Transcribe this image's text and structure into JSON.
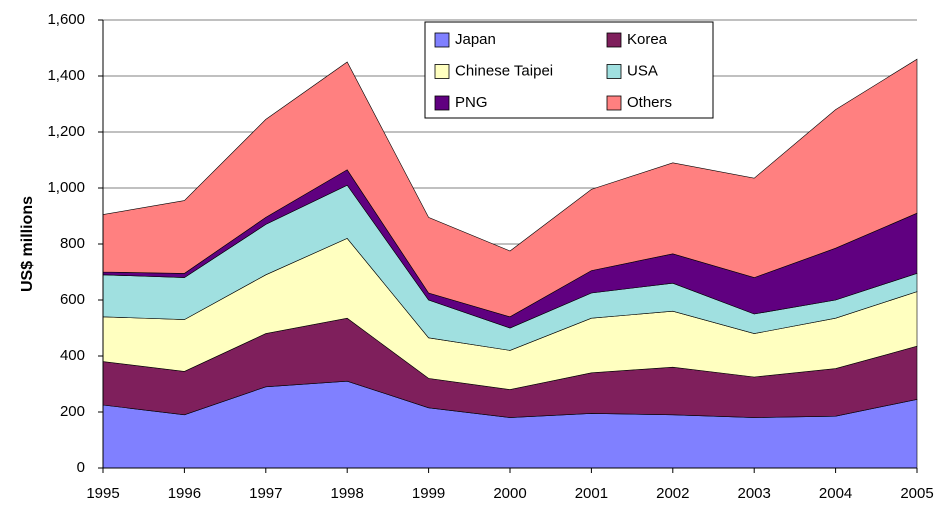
{
  "chart_data": {
    "type": "stacked-area",
    "y_label": "US$ millions",
    "categories": [
      "1995",
      "1996",
      "1997",
      "1998",
      "1999",
      "2000",
      "2001",
      "2002",
      "2003",
      "2004",
      "2005"
    ],
    "series": [
      {
        "name": "Japan",
        "color": "#8080ff",
        "values": [
          225,
          190,
          290,
          310,
          215,
          180,
          195,
          190,
          180,
          185,
          245
        ]
      },
      {
        "name": "Korea",
        "color": "#7f1f5c",
        "values": [
          155,
          155,
          190,
          225,
          105,
          100,
          145,
          170,
          145,
          170,
          190
        ]
      },
      {
        "name": "Chinese Taipei",
        "color": "#ffffc0",
        "values": [
          160,
          185,
          210,
          285,
          145,
          140,
          195,
          200,
          155,
          180,
          195
        ]
      },
      {
        "name": "USA",
        "color": "#a0e0e0",
        "values": [
          150,
          150,
          180,
          190,
          135,
          80,
          90,
          100,
          70,
          65,
          65
        ]
      },
      {
        "name": "PNG",
        "color": "#600080",
        "values": [
          10,
          15,
          25,
          55,
          25,
          40,
          80,
          105,
          130,
          185,
          215
        ]
      },
      {
        "name": "Others",
        "color": "#ff8080",
        "values": [
          205,
          260,
          350,
          385,
          270,
          235,
          290,
          325,
          355,
          495,
          550
        ]
      }
    ],
    "ylim": [
      0,
      1600
    ],
    "yticks": [
      0,
      200,
      400,
      600,
      800,
      {
        "value": 1000,
        "label": "1,000"
      },
      {
        "value": 1200,
        "label": "1,200"
      },
      {
        "value": 1400,
        "label": "1,400"
      },
      {
        "value": 1600,
        "label": "1,600"
      }
    ],
    "grid": true,
    "legend_position": "top"
  }
}
